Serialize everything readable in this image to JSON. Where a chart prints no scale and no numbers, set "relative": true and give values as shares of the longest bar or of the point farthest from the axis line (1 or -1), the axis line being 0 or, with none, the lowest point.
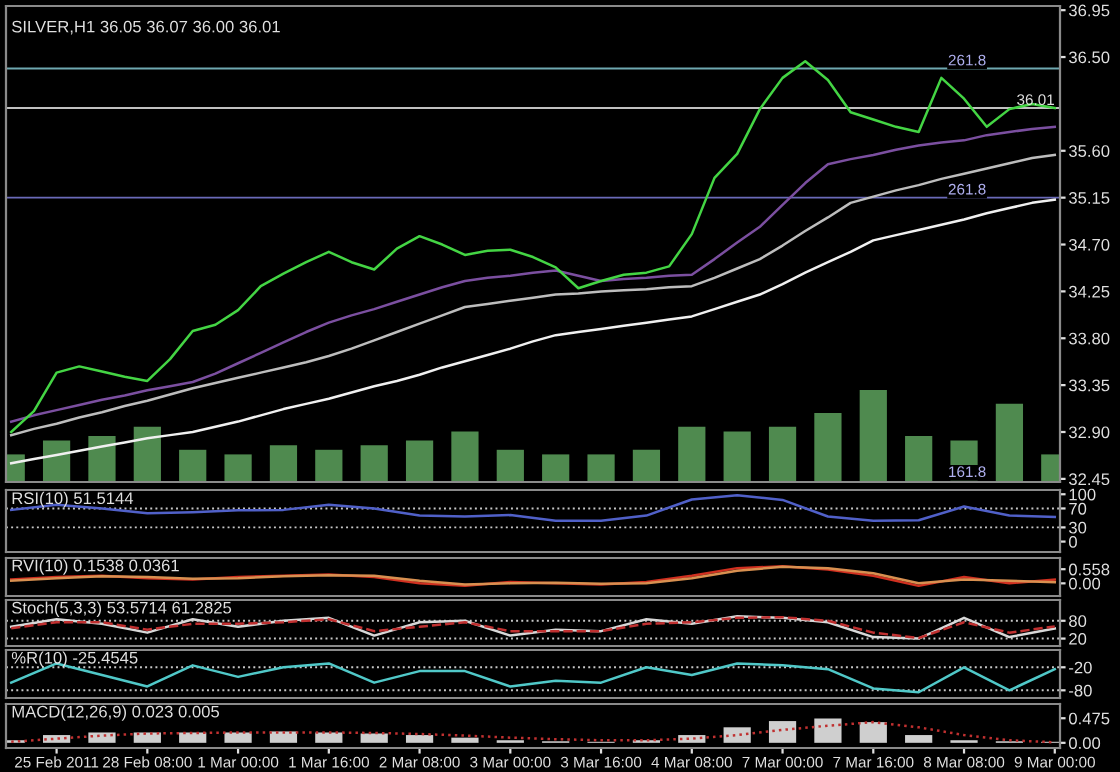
{
  "chart_data": [
    {
      "type": "line",
      "title": "SILVER,H1 36.05 36.07 36.00 36.01",
      "ylim": [
        32.42,
        36.99
      ],
      "tick_labels": "y",
      "categories": [
        null,
        null,
        null,
        null,
        null,
        null,
        null,
        null,
        null,
        null,
        null,
        null,
        null,
        null,
        null,
        null,
        null,
        null,
        null,
        null,
        null,
        null,
        null,
        null,
        null,
        null,
        null,
        null,
        null,
        null,
        null,
        null,
        null,
        null,
        null,
        null,
        null,
        null,
        null,
        null,
        null,
        null,
        null,
        null,
        null,
        null,
        null
      ],
      "yticks": [
        36.95,
        {
          "value": 36.5,
          "label": "36.50"
        },
        {
          "value": 35.6,
          "label": "35.60"
        },
        35.15,
        {
          "value": 34.7,
          "label": "34.70"
        },
        34.25,
        {
          "value": 33.8,
          "label": "33.80"
        },
        33.35,
        {
          "value": 32.9,
          "label": "32.90"
        },
        32.45
      ],
      "series": [
        {
          "color": "#f0f0f0",
          "values": [
            32.6,
            32.64,
            32.68,
            32.72,
            32.76,
            32.8,
            32.84,
            32.87,
            32.9,
            32.95,
            33.0,
            33.06,
            33.12,
            33.17,
            33.22,
            33.28,
            33.34,
            33.39,
            33.45,
            33.52,
            33.58,
            33.64,
            33.7,
            33.77,
            33.83,
            33.86,
            33.89,
            33.92,
            33.95,
            33.98,
            34.01,
            34.08,
            34.15,
            34.22,
            34.32,
            34.43,
            34.53,
            34.63,
            34.74,
            34.79,
            34.84,
            34.89,
            34.94,
            35.0,
            35.05,
            35.1,
            35.13
          ]
        },
        {
          "color": "#bdbdbd",
          "values": [
            32.87,
            32.93,
            32.98,
            33.04,
            33.09,
            33.15,
            33.2,
            33.26,
            33.32,
            33.37,
            33.42,
            33.47,
            33.52,
            33.57,
            33.63,
            33.7,
            33.78,
            33.86,
            33.94,
            34.02,
            34.1,
            34.13,
            34.16,
            34.19,
            34.22,
            34.23,
            34.25,
            34.26,
            34.27,
            34.29,
            34.3,
            34.38,
            34.47,
            34.56,
            34.69,
            34.83,
            34.96,
            35.1,
            35.16,
            35.22,
            35.27,
            35.33,
            35.38,
            35.43,
            35.48,
            35.53,
            35.56
          ]
        },
        {
          "color": "#7b4fa0",
          "values": [
            33.0,
            33.06,
            33.11,
            33.16,
            33.21,
            33.25,
            33.3,
            33.34,
            33.38,
            33.46,
            33.56,
            33.66,
            33.76,
            33.86,
            33.95,
            34.02,
            34.08,
            34.15,
            34.22,
            34.29,
            34.35,
            34.38,
            34.4,
            34.43,
            34.45,
            34.4,
            34.35,
            34.37,
            34.38,
            34.4,
            34.41,
            34.56,
            34.72,
            34.87,
            35.08,
            35.29,
            35.47,
            35.52,
            35.56,
            35.61,
            35.65,
            35.68,
            35.7,
            35.75,
            35.78,
            35.81,
            35.83
          ]
        },
        {
          "color": "#44d544",
          "values": [
            32.9,
            33.1,
            33.47,
            33.53,
            33.48,
            33.43,
            33.39,
            33.6,
            33.87,
            33.93,
            34.07,
            34.3,
            34.42,
            34.53,
            34.63,
            34.53,
            34.46,
            34.66,
            34.78,
            34.7,
            34.6,
            34.64,
            34.65,
            34.58,
            34.48,
            34.28,
            34.35,
            34.41,
            34.43,
            34.49,
            34.8,
            35.34,
            35.57,
            36.0,
            36.3,
            36.46,
            36.28,
            35.97,
            35.9,
            35.83,
            35.78,
            36.3,
            36.1,
            35.83,
            36.0,
            36.05,
            36.01
          ]
        }
      ],
      "ref_lines": [
        {
          "axis": "y",
          "value": 36.39,
          "color": "#6fa8b0",
          "line_style": "solid"
        },
        {
          "axis": "y",
          "value": 36.01,
          "label": "36.01",
          "color": "#c0c0c0",
          "line_style": "solid"
        },
        {
          "axis": "y",
          "value": 35.15,
          "color": "#6a6ab8",
          "line_style": "solid"
        }
      ],
      "annotations": [
        {
          "text": "261.8",
          "y": 36.39
        },
        {
          "text": "261.8",
          "y": 35.15
        },
        "161.8"
      ]
    },
    {
      "type": "bar",
      "relative": true,
      "color": "#4f8a4f",
      "categories": [
        null,
        null,
        null,
        null,
        null,
        null,
        null,
        null,
        null,
        null,
        null,
        null,
        null,
        null,
        null,
        null,
        null,
        null,
        null,
        null,
        null,
        null,
        null,
        null
      ],
      "values": [
        0.3,
        0.45,
        0.5,
        0.6,
        0.35,
        0.3,
        0.4,
        0.35,
        0.4,
        0.45,
        0.55,
        0.35,
        0.3,
        0.3,
        0.35,
        0.6,
        0.55,
        0.6,
        0.75,
        1.0,
        0.5,
        0.45,
        0.85,
        0.3
      ]
    },
    {
      "type": "line",
      "title": "RSI(10) 51.5144",
      "ylim": [
        -22,
        109
      ],
      "yticks": [
        100,
        70,
        30,
        0
      ],
      "tick_labels": "y",
      "categories": [
        null,
        null,
        null,
        null,
        null,
        null,
        null,
        null,
        null,
        null,
        null,
        null,
        null,
        null,
        null,
        null,
        null,
        null,
        null,
        null,
        null,
        null,
        null,
        null
      ],
      "series": [
        {
          "color": "#5060c8",
          "values": [
            67,
            78,
            70,
            60,
            62,
            66,
            67,
            78,
            70,
            55,
            53,
            56,
            44,
            44,
            55,
            89,
            98,
            88,
            53,
            44,
            45,
            74,
            55,
            52
          ]
        }
      ],
      "ref_lines": [
        {
          "axis": "y",
          "value": 70,
          "color": "#c8c8c8",
          "line_style": "dotted"
        },
        {
          "axis": "y",
          "value": 30,
          "color": "#c8c8c8",
          "line_style": "dotted"
        }
      ]
    },
    {
      "type": "line",
      "title": "RVI(10) 0.1538 0.0361",
      "ylim": [
        -0.5,
        1.0
      ],
      "yticks": [
        0.558,
        {
          "value": 0,
          "label": "0.00"
        }
      ],
      "tick_labels": "y",
      "categories": [
        null,
        null,
        null,
        null,
        null,
        null,
        null,
        null,
        null,
        null,
        null,
        null,
        null,
        null,
        null,
        null,
        null,
        null,
        null,
        null,
        null,
        null,
        null,
        null
      ],
      "series": [
        {
          "color": "#d03020",
          "values": [
            0.15,
            0.25,
            0.3,
            0.2,
            0.15,
            0.25,
            0.3,
            0.35,
            0.25,
            0.0,
            -0.1,
            0.05,
            0.0,
            -0.05,
            0.05,
            0.3,
            0.6,
            0.67,
            0.55,
            0.3,
            -0.1,
            0.25,
            0.0,
            0.15
          ]
        },
        {
          "color": "#d89050",
          "values": [
            0.1,
            0.2,
            0.28,
            0.25,
            0.18,
            0.2,
            0.28,
            0.32,
            0.3,
            0.1,
            -0.05,
            0.0,
            0.02,
            -0.02,
            0.0,
            0.2,
            0.5,
            0.65,
            0.6,
            0.4,
            0.0,
            0.15,
            0.1,
            0.04
          ]
        }
      ]
    },
    {
      "type": "line",
      "title": "Stoch(5,3,3) 53.5714 61.2825",
      "ylim": [
        -5,
        150
      ],
      "yticks": [
        80,
        20
      ],
      "tick_labels": "y",
      "categories": [
        null,
        null,
        null,
        null,
        null,
        null,
        null,
        null,
        null,
        null,
        null,
        null,
        null,
        null,
        null,
        null,
        null,
        null,
        null,
        null,
        null,
        null,
        null,
        null
      ],
      "series": [
        {
          "color": "#d8d8d8",
          "values": [
            60,
            85,
            70,
            40,
            85,
            60,
            80,
            90,
            30,
            75,
            80,
            30,
            50,
            45,
            85,
            70,
            95,
            90,
            75,
            25,
            20,
            90,
            25,
            54
          ]
        },
        {
          "color": "#c03030",
          "line_style": "dashed",
          "values": [
            55,
            75,
            75,
            50,
            70,
            70,
            75,
            85,
            45,
            60,
            75,
            45,
            45,
            45,
            70,
            75,
            90,
            92,
            80,
            40,
            22,
            75,
            40,
            61
          ]
        }
      ],
      "ref_lines": [
        {
          "axis": "y",
          "value": 80,
          "color": "#c8c8c8",
          "line_style": "dotted"
        },
        {
          "axis": "y",
          "value": 20,
          "color": "#c8c8c8",
          "line_style": "dotted"
        }
      ]
    },
    {
      "type": "line",
      "title": "%R(10) -25.4545",
      "ylim": [
        -100,
        25
      ],
      "yticks": [
        -20,
        -80
      ],
      "tick_labels": "y",
      "categories": [
        null,
        null,
        null,
        null,
        null,
        null,
        null,
        null,
        null,
        null,
        null,
        null,
        null,
        null,
        null,
        null,
        null,
        null,
        null,
        null,
        null,
        null,
        null,
        null
      ],
      "series": [
        {
          "color": "#50c8c8",
          "values": [
            -60,
            -10,
            -40,
            -70,
            -15,
            -45,
            -20,
            -10,
            -60,
            -30,
            -30,
            -70,
            -55,
            -60,
            -20,
            -40,
            -10,
            -15,
            -25,
            -75,
            -85,
            -20,
            -80,
            -25
          ]
        }
      ],
      "ref_lines": [
        {
          "axis": "y",
          "value": -20,
          "color": "#c8c8c8",
          "line_style": "dotted"
        },
        {
          "axis": "y",
          "value": -80,
          "color": "#c8c8c8",
          "line_style": "dotted"
        }
      ]
    },
    {
      "type": "bar",
      "title": "MACD(12,26,9) 0.023 0.005",
      "ylim": [
        -0.1,
        0.75
      ],
      "yticks": [
        0.475,
        {
          "value": 0,
          "label": "0.00"
        }
      ],
      "categories": [
        null,
        "25 Feb 2011",
        null,
        "28 Feb 08:00",
        null,
        "1 Mar 00:00",
        null,
        "1 Mar 16:00",
        null,
        "2 Mar 08:00",
        null,
        "3 Mar 00:00",
        null,
        "3 Mar 16:00",
        null,
        "4 Mar 08:00",
        null,
        "7 Mar 00:00",
        null,
        "7 Mar 16:00",
        null,
        "8 Mar 08:00",
        null,
        "9 Mar 00:00"
      ],
      "series": [
        {
          "color": "#cfcfcf",
          "values": [
            0.05,
            0.15,
            0.2,
            0.2,
            0.2,
            0.2,
            0.22,
            0.2,
            0.18,
            0.15,
            0.1,
            0.05,
            0.03,
            0.02,
            0.05,
            0.15,
            0.3,
            0.42,
            0.47,
            0.4,
            0.15,
            0.05,
            0.03,
            0.02
          ]
        },
        {
          "type": "line",
          "color": "#c03030",
          "line_style": "dotted",
          "values": [
            0.02,
            0.08,
            0.14,
            0.18,
            0.19,
            0.2,
            0.2,
            0.2,
            0.19,
            0.17,
            0.14,
            0.1,
            0.07,
            0.05,
            0.05,
            0.08,
            0.15,
            0.25,
            0.33,
            0.4,
            0.3,
            0.15,
            0.05,
            0.01
          ]
        }
      ]
    }
  ]
}
